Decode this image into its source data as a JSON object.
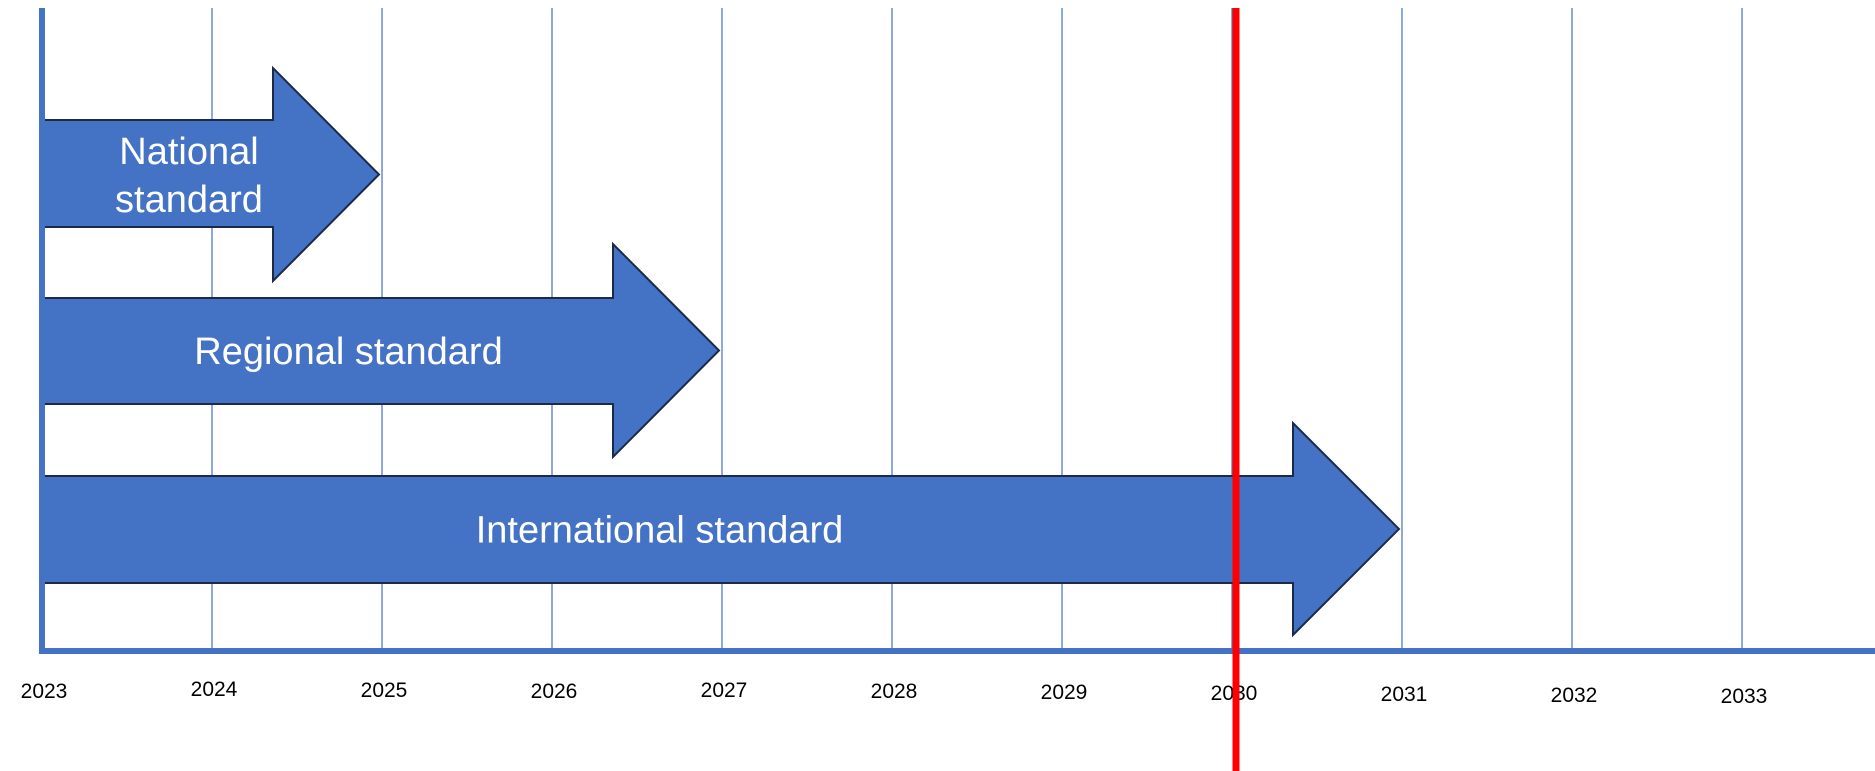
{
  "timeline": {
    "years": [
      "2023",
      "2024",
      "2025",
      "2026",
      "2027",
      "2028",
      "2029",
      "2030",
      "2031",
      "2032",
      "2033"
    ],
    "arrows": [
      {
        "label_lines": [
          "National",
          "standard"
        ],
        "start_year": 2023,
        "end_year": 2025
      },
      {
        "label_lines": [
          "Regional standard"
        ],
        "start_year": 2023,
        "end_year": 2027
      },
      {
        "label_lines": [
          "International standard"
        ],
        "start_year": 2023,
        "end_year": 2031
      }
    ],
    "marker_year": 2030
  },
  "colors": {
    "arrow_fill": "#4472c4",
    "gridline": "#4472c4",
    "axis": "#4472c4",
    "marker": "#ff0000"
  }
}
